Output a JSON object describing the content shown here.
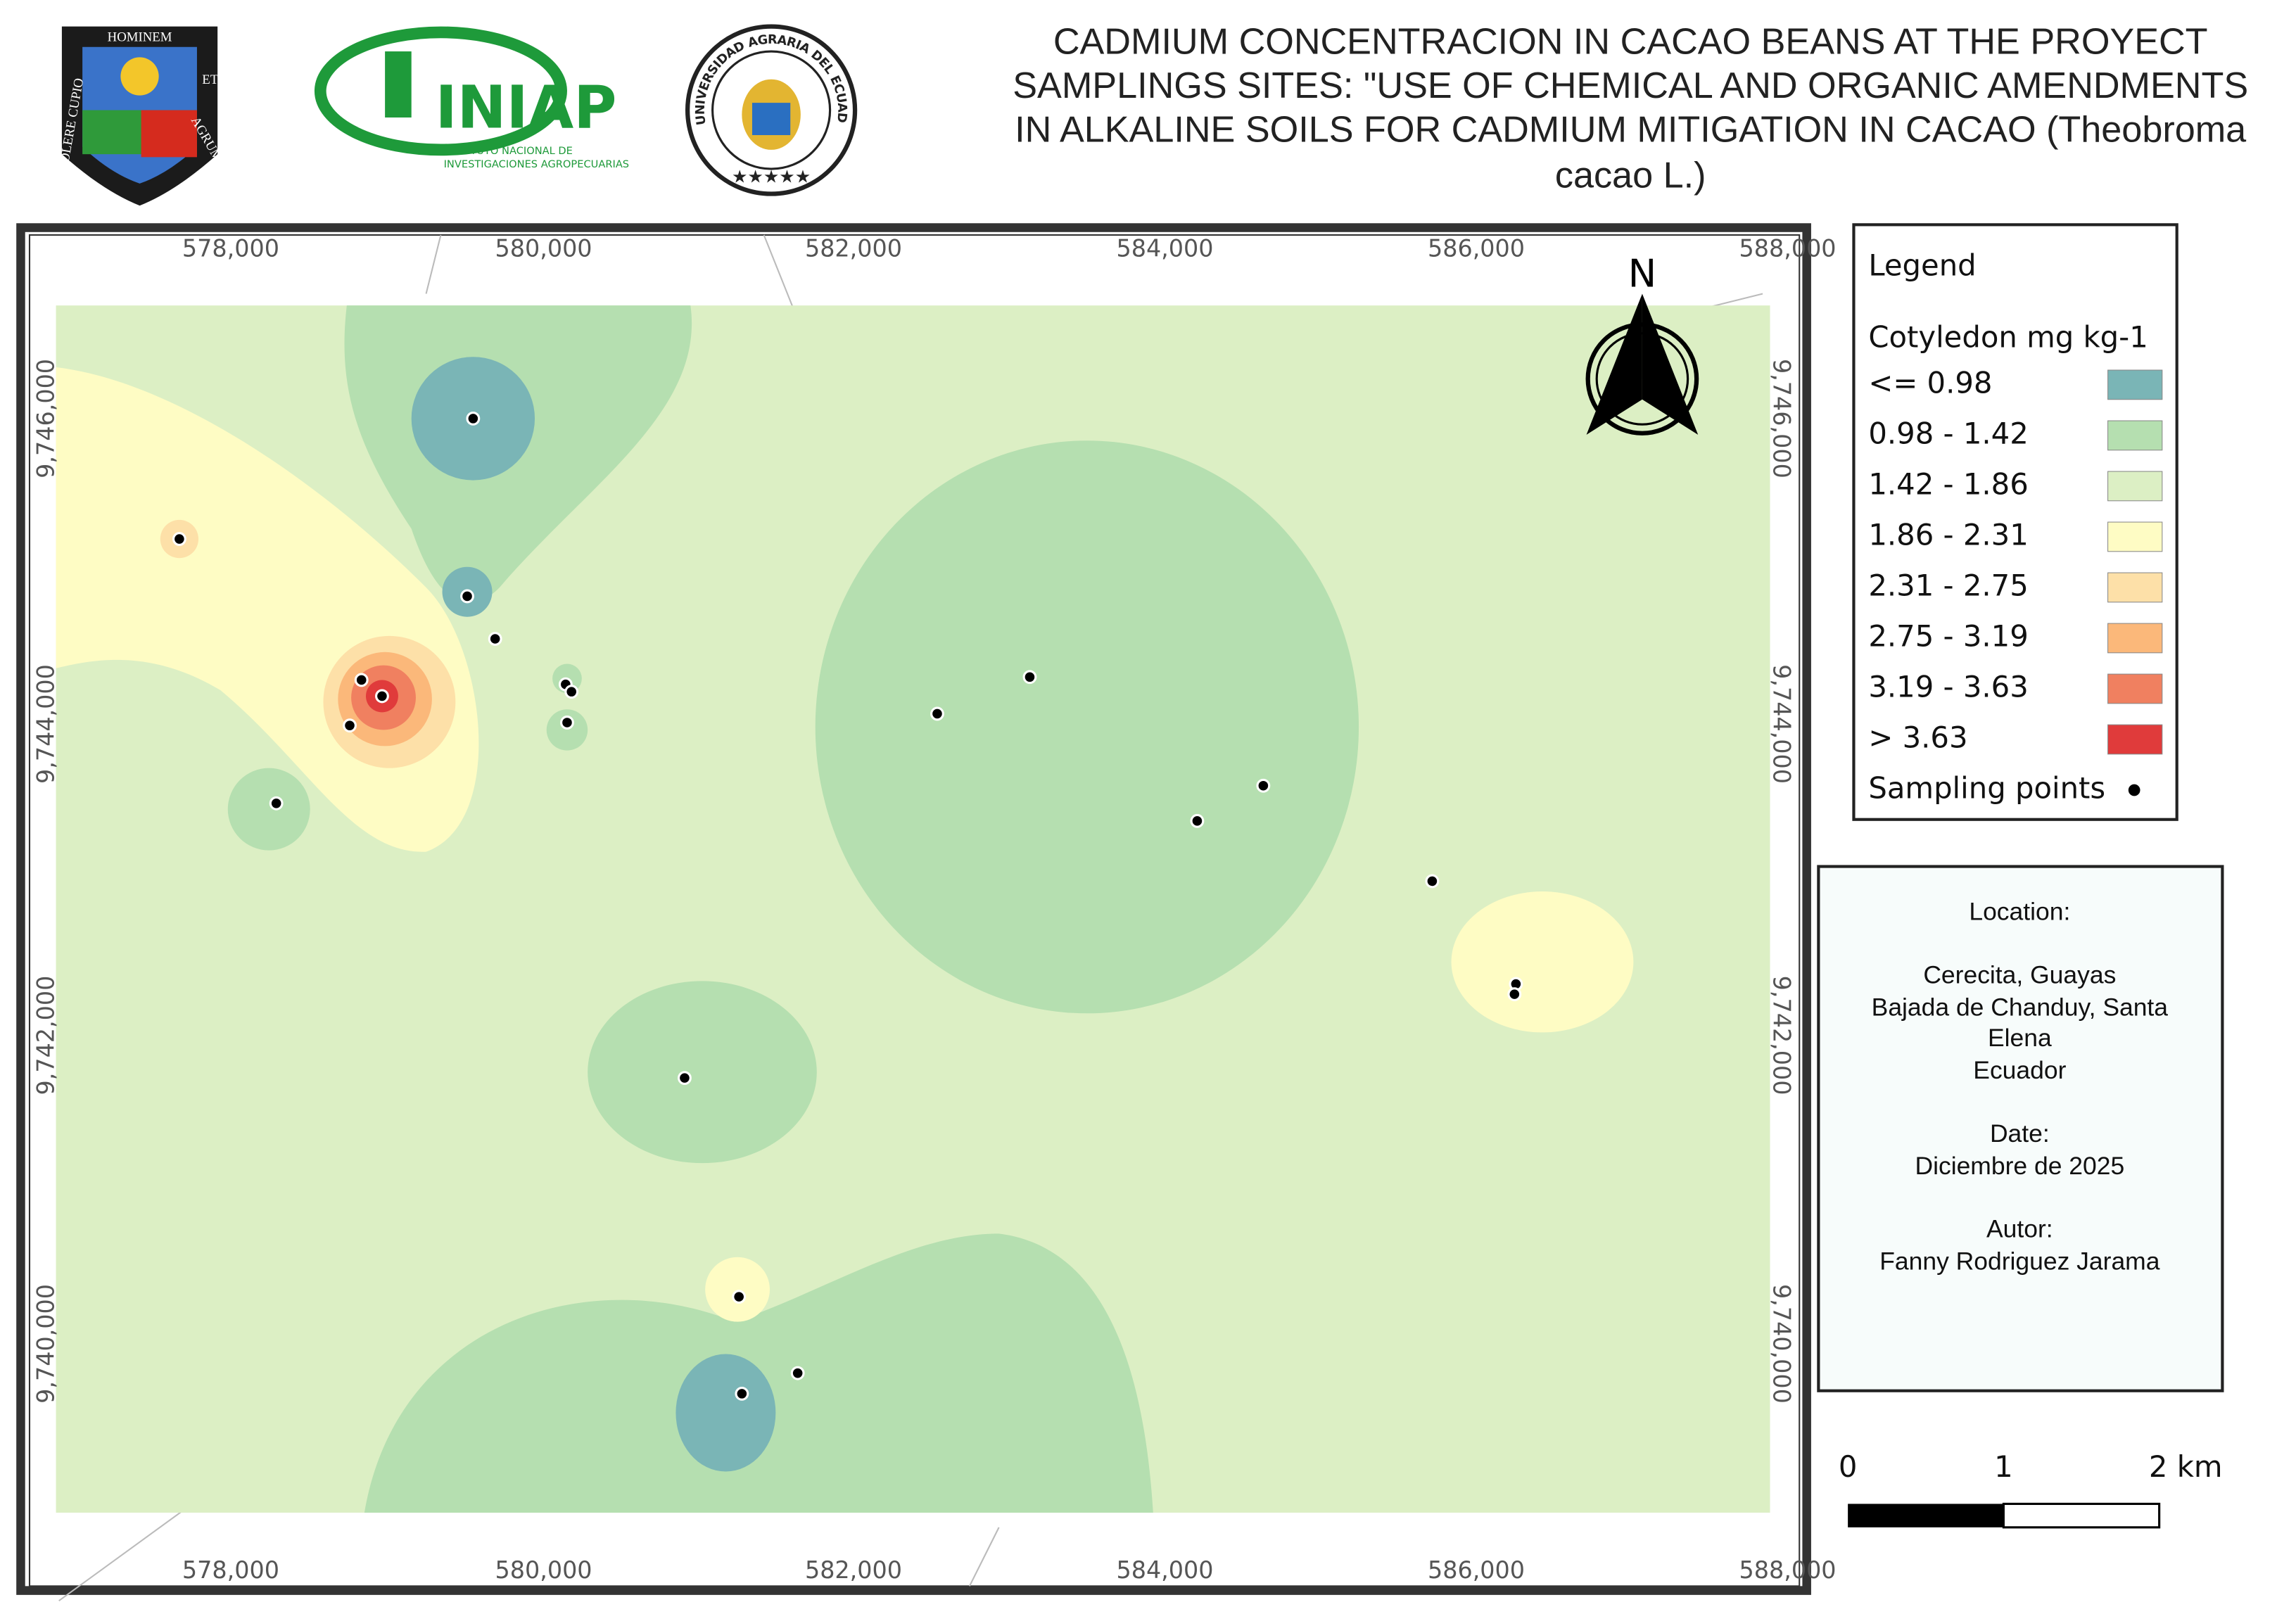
{
  "header": {
    "title_lines": [
      "CADMIUM CONCENTRACION IN CACAO BEANS AT THE PROYECT",
      "SAMPLINGS SITES: \"USE OF CHEMICAL AND ORGANIC  AMENDMENTS",
      "IN ALKALINE SOILS FOR CADMIUM MITIGATION IN CACAO (Theobroma",
      "cacao L.)"
    ],
    "logos": {
      "shield": [
        "HOMINEM",
        "ET",
        "AGRUM",
        "COLERE CUPIO"
      ],
      "iniap": [
        "INIAP",
        "INSTITUTO NACIONAL DE",
        "INVESTIGACIONES AGROPECUARIAS"
      ],
      "university": "UNIVERSIDAD AGRARIA DEL ECUADOR"
    }
  },
  "map": {
    "x_labels": [
      "578,000",
      "580,000",
      "582,000",
      "584,000",
      "586,000",
      "588,000"
    ],
    "y_labels": [
      "9,746,000",
      "9,744,000",
      "9,742,000",
      "9,740,000"
    ],
    "north": "N",
    "scale_labels": [
      "0",
      "1",
      "2 km"
    ]
  },
  "legend": {
    "title": "Legend",
    "subtitle": "Cotyledon mg kg-1",
    "items": [
      {
        "label": "<= 0.98",
        "color": "#7ab5b6"
      },
      {
        "label": "0.98 - 1.42",
        "color": "#b5dfb0"
      },
      {
        "label": "1.42 - 1.86",
        "color": "#dcefc4"
      },
      {
        "label": "1.86 - 2.31",
        "color": "#fefcc4"
      },
      {
        "label": "2.31 - 2.75",
        "color": "#fde0a8"
      },
      {
        "label": "2.75 - 3.19",
        "color": "#fbb87a"
      },
      {
        "label": "3.19 - 3.63",
        "color": "#f08060"
      },
      {
        "label": "> 3.63",
        "color": "#e03b3b"
      }
    ],
    "points": {
      "label": "Sampling points",
      "color": "#000000"
    }
  },
  "info": {
    "lines": [
      "Location:",
      "Cerecita, Guayas",
      "Bajada de Chanduy, Santa",
      "Elena",
      "Ecuador",
      "Date:",
      "Diciembre de 2025",
      "Autor:",
      "Fanny Rodriguez Jarama"
    ]
  }
}
